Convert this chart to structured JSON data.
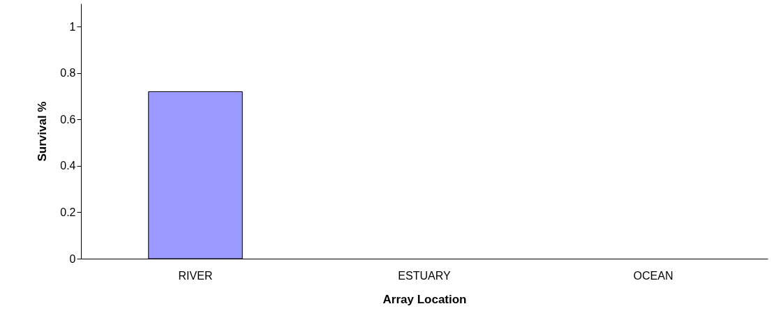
{
  "chart_data": {
    "type": "bar",
    "xlabel": "Array Location",
    "ylabel": "Survival %",
    "categories": [
      "RIVER",
      "ESTUARY",
      "OCEAN"
    ],
    "values": [
      0.72,
      null,
      null
    ],
    "color": "#9999ff",
    "ylim": [
      0,
      1.1
    ],
    "yticks": [
      0,
      0.2,
      0.4,
      0.6,
      0.8,
      1
    ],
    "grid": false
  }
}
